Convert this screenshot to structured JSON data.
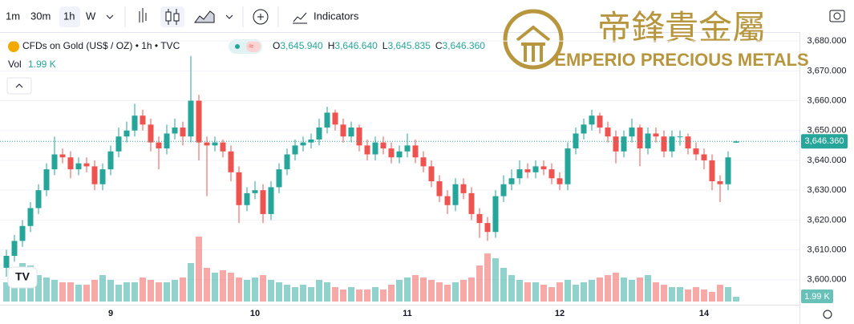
{
  "toolbar": {
    "intervals": [
      "1m",
      "30m",
      "1h",
      "W"
    ],
    "indicators": "Indicators"
  },
  "watermark": {
    "chinese": "帝鋒貴金屬",
    "name": "EMPERIO PRECIOUS METALS"
  },
  "legend": {
    "symbol": "CFDs on Gold (US$ / OZ) • 1h • TVC",
    "ohlc": [
      {
        "label": "O",
        "value": "3,645.940"
      },
      {
        "label": "H",
        "value": "3,646.640"
      },
      {
        "label": "L",
        "value": "3,645.835"
      },
      {
        "label": "C",
        "value": "3,646.360"
      }
    ],
    "volume_label": "Vol",
    "volume_value": "1.99 K"
  },
  "chart_data": {
    "type": "candlestick",
    "ylim": [
      3591.6,
      3683
    ],
    "yticks": [
      {
        "value": 3600,
        "label": "3,600.000"
      },
      {
        "value": 3610,
        "label": "3,610.000"
      },
      {
        "value": 3620,
        "label": "3,620.000"
      },
      {
        "value": 3630,
        "label": "3,630.000"
      },
      {
        "value": 3640,
        "label": "3,640.000"
      },
      {
        "value": 3650,
        "label": "3,650.000"
      },
      {
        "value": 3660,
        "label": "3,660.000"
      },
      {
        "value": 3670,
        "label": "3,670.000"
      },
      {
        "value": 3680,
        "label": "3,680.000"
      }
    ],
    "last_price": {
      "value": 3646.36,
      "label": "3,646.360"
    },
    "up_color": "#26a69a",
    "down_color": "#ef5350",
    "categories": [
      null,
      null,
      null,
      null,
      null,
      null,
      null,
      null,
      null,
      null,
      null,
      null,
      null,
      "9",
      null,
      null,
      null,
      null,
      null,
      null,
      null,
      null,
      null,
      null,
      null,
      null,
      null,
      null,
      null,
      null,
      null,
      "10",
      null,
      null,
      null,
      null,
      null,
      null,
      null,
      null,
      null,
      null,
      null,
      null,
      null,
      null,
      null,
      null,
      null,
      null,
      "11",
      null,
      null,
      null,
      null,
      null,
      null,
      null,
      null,
      null,
      null,
      null,
      null,
      null,
      null,
      null,
      null,
      null,
      null,
      "12",
      null,
      null,
      null,
      null,
      null,
      null,
      null,
      null,
      null,
      null,
      null,
      null,
      null,
      null,
      null,
      null,
      null,
      "14",
      null,
      null,
      null,
      null
    ],
    "candles": [
      [
        3604,
        3610,
        3601,
        3608
      ],
      [
        3608,
        3615,
        3606,
        3613
      ],
      [
        3613,
        3620,
        3611,
        3618
      ],
      [
        3618,
        3626,
        3616,
        3624
      ],
      [
        3624,
        3632,
        3622,
        3630
      ],
      [
        3630,
        3639,
        3628,
        3637
      ],
      [
        3637,
        3648,
        3635,
        3642
      ],
      [
        3642,
        3644,
        3639,
        3641
      ],
      [
        3641,
        3643,
        3634,
        3637
      ],
      [
        3637,
        3641,
        3635,
        3639
      ],
      [
        3639,
        3641,
        3636,
        3638
      ],
      [
        3638,
        3640,
        3630,
        3632
      ],
      [
        3632,
        3639,
        3630,
        3637
      ],
      [
        3637,
        3645,
        3635,
        3643
      ],
      [
        3643,
        3651,
        3641,
        3648
      ],
      [
        3648,
        3653,
        3646,
        3650
      ],
      [
        3650,
        3659,
        3648,
        3655
      ],
      [
        3655,
        3657,
        3650,
        3652
      ],
      [
        3652,
        3654,
        3643,
        3646
      ],
      [
        3646,
        3648,
        3637,
        3644
      ],
      [
        3644,
        3652,
        3642,
        3649
      ],
      [
        3649,
        3654,
        3647,
        3651
      ],
      [
        3651,
        3653,
        3645,
        3648
      ],
      [
        3648,
        3675,
        3646,
        3660
      ],
      [
        3660,
        3662,
        3640,
        3646
      ],
      [
        3646,
        3648,
        3628,
        3645
      ],
      [
        3645,
        3648,
        3643,
        3646
      ],
      [
        3646,
        3647,
        3641,
        3643
      ],
      [
        3643,
        3645,
        3633,
        3636
      ],
      [
        3636,
        3638,
        3619,
        3625
      ],
      [
        3625,
        3631,
        3623,
        3629
      ],
      [
        3629,
        3633,
        3627,
        3630
      ],
      [
        3630,
        3632,
        3619,
        3622
      ],
      [
        3622,
        3633,
        3620,
        3631
      ],
      [
        3631,
        3639,
        3629,
        3637
      ],
      [
        3637,
        3644,
        3635,
        3642
      ],
      [
        3642,
        3647,
        3640,
        3645
      ],
      [
        3645,
        3648,
        3643,
        3646
      ],
      [
        3646,
        3649,
        3644,
        3647
      ],
      [
        3647,
        3654,
        3645,
        3651
      ],
      [
        3651,
        3658,
        3649,
        3656
      ],
      [
        3656,
        3657,
        3650,
        3652
      ],
      [
        3652,
        3654,
        3646,
        3648
      ],
      [
        3648,
        3653,
        3646,
        3651
      ],
      [
        3651,
        3652,
        3643,
        3645
      ],
      [
        3645,
        3647,
        3640,
        3642
      ],
      [
        3642,
        3648,
        3640,
        3646
      ],
      [
        3646,
        3648,
        3642,
        3644
      ],
      [
        3644,
        3646,
        3639,
        3641
      ],
      [
        3641,
        3645,
        3639,
        3643
      ],
      [
        3643,
        3649,
        3641,
        3645
      ],
      [
        3645,
        3647,
        3639,
        3641
      ],
      [
        3641,
        3643,
        3636,
        3638
      ],
      [
        3638,
        3640,
        3631,
        3633
      ],
      [
        3633,
        3635,
        3626,
        3628
      ],
      [
        3628,
        3630,
        3622,
        3625
      ],
      [
        3625,
        3634,
        3623,
        3632
      ],
      [
        3632,
        3634,
        3627,
        3629
      ],
      [
        3629,
        3631,
        3620,
        3622
      ],
      [
        3622,
        3624,
        3614,
        3619
      ],
      [
        3619,
        3621,
        3613,
        3616
      ],
      [
        3616,
        3630,
        3614,
        3628
      ],
      [
        3628,
        3635,
        3626,
        3632
      ],
      [
        3632,
        3637,
        3630,
        3634
      ],
      [
        3634,
        3640,
        3632,
        3637
      ],
      [
        3637,
        3639,
        3634,
        3636
      ],
      [
        3636,
        3640,
        3634,
        3638
      ],
      [
        3638,
        3640,
        3635,
        3637
      ],
      [
        3637,
        3639,
        3632,
        3634
      ],
      [
        3634,
        3636,
        3630,
        3632
      ],
      [
        3632,
        3646,
        3630,
        3644
      ],
      [
        3644,
        3651,
        3642,
        3649
      ],
      [
        3649,
        3654,
        3647,
        3652
      ],
      [
        3652,
        3657,
        3650,
        3655
      ],
      [
        3655,
        3656,
        3649,
        3651
      ],
      [
        3651,
        3653,
        3646,
        3648
      ],
      [
        3648,
        3650,
        3639,
        3643
      ],
      [
        3643,
        3650,
        3641,
        3648
      ],
      [
        3648,
        3654,
        3646,
        3651
      ],
      [
        3651,
        3652,
        3638,
        3644
      ],
      [
        3644,
        3651,
        3642,
        3649
      ],
      [
        3649,
        3651,
        3646,
        3648
      ],
      [
        3648,
        3650,
        3641,
        3643
      ],
      [
        3643,
        3650,
        3641,
        3648
      ],
      [
        3648,
        3650,
        3645,
        3648
      ],
      [
        3648,
        3649,
        3642,
        3644
      ],
      [
        3644,
        3646,
        3640,
        3642
      ],
      [
        3642,
        3644,
        3637,
        3640
      ],
      [
        3640,
        3642,
        3630,
        3633
      ],
      [
        3633,
        3635,
        3626,
        3632
      ],
      [
        3632,
        3643,
        3630,
        3641
      ],
      [
        3645.94,
        3646.64,
        3645.835,
        3646.36
      ]
    ],
    "volume": [
      8,
      12,
      16,
      15,
      11,
      10,
      9,
      8,
      8,
      7,
      7,
      9,
      11,
      9,
      7,
      8,
      8,
      10,
      9,
      8,
      8,
      9,
      10,
      16,
      27,
      14,
      12,
      13,
      12,
      10,
      9,
      10,
      11,
      9,
      8,
      7,
      6,
      7,
      6,
      9,
      8,
      6,
      5,
      6,
      5,
      5,
      6,
      5,
      7,
      9,
      10,
      11,
      10,
      9,
      8,
      7,
      8,
      9,
      10,
      15,
      20,
      18,
      14,
      11,
      9,
      8,
      8,
      7,
      6,
      8,
      9,
      7,
      8,
      9,
      10,
      11,
      12,
      10,
      9,
      10,
      11,
      8,
      7,
      6,
      6,
      5,
      6,
      5,
      4,
      7,
      6,
      1.99
    ],
    "volume_value_labels": {
      "91": "1.99 K"
    }
  }
}
